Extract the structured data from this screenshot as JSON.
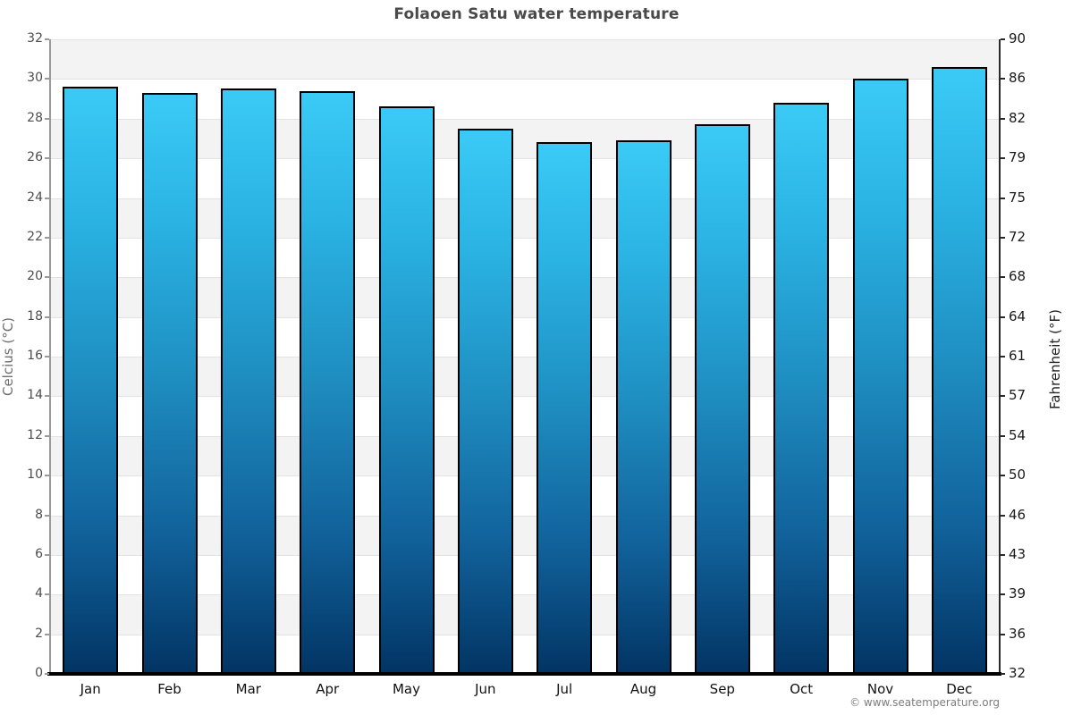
{
  "title": "Folaoen Satu water temperature",
  "footer": "© www.seatemperature.org",
  "chart_data": {
    "type": "bar",
    "title": "Folaoen Satu water temperature",
    "categories": [
      "Jan",
      "Feb",
      "Mar",
      "Apr",
      "May",
      "Jun",
      "Jul",
      "Aug",
      "Sep",
      "Oct",
      "Nov",
      "Dec"
    ],
    "values": [
      29.6,
      29.3,
      29.5,
      29.4,
      28.6,
      27.5,
      26.8,
      26.9,
      27.7,
      28.8,
      30.0,
      30.6
    ],
    "series_name": "Water temperature (°C)",
    "xlabel": "",
    "ylabel_left": "Celcius (°C)",
    "ylabel_right": "Fahrenheit (°F)",
    "ylim": [
      0,
      32
    ],
    "ytick_step": 2,
    "yticks_celsius": [
      0,
      2,
      4,
      6,
      8,
      10,
      12,
      14,
      16,
      18,
      20,
      22,
      24,
      26,
      28,
      30,
      32
    ],
    "yticks_fahrenheit": [
      "32",
      "36",
      "39",
      "43",
      "46",
      "50",
      "54",
      "57",
      "61",
      "64",
      "68",
      "72",
      "75",
      "79",
      "82",
      "86",
      "90"
    ],
    "grid": "alternating-horizontal-bands",
    "legend": "none",
    "colors": {
      "bar_gradient_top": "#3bcaf6",
      "bar_gradient_mid": "#1f8fc2",
      "bar_gradient_bottom": "#023463",
      "bar_border": "#000000",
      "band_gray": "#f3f3f3",
      "band_white": "#ffffff",
      "gridline": "#e2e2e2",
      "title_color": "#4a4a4a",
      "left_axis_color": "#9a9a9a",
      "right_axis_color": "#2a2a2a",
      "bottom_axis_color": "#000000",
      "footer_color": "#7d7d7d"
    }
  }
}
